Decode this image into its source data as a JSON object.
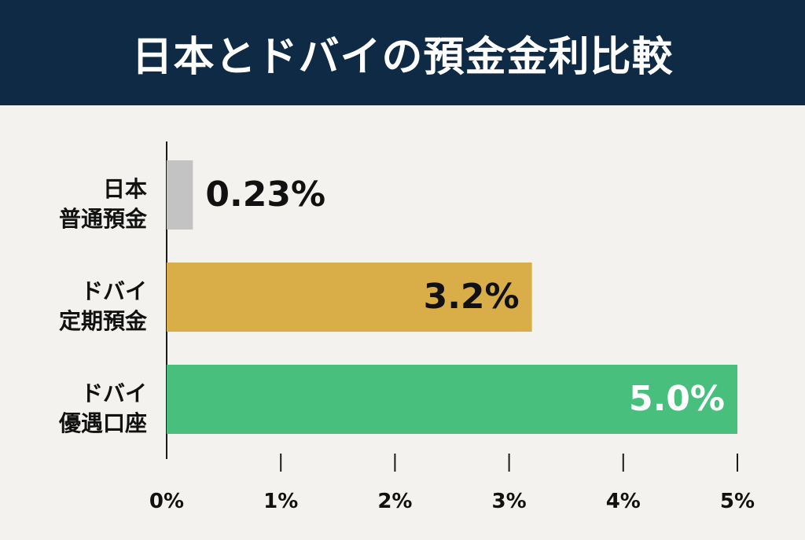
{
  "header": {
    "title": "日本とドバイの預金金利比較"
  },
  "colors": {
    "header_bg": "#0e2a45",
    "background": "#f3f2ee",
    "axis": "#1a1a1a"
  },
  "chart_data": {
    "type": "bar",
    "orientation": "horizontal",
    "title": "日本とドバイの預金金利比較",
    "xlabel": "",
    "ylabel": "",
    "xlim": [
      0,
      5
    ],
    "x_ticks": [
      "0%",
      "1%",
      "2%",
      "3%",
      "4%",
      "5%"
    ],
    "grid": false,
    "categories": [
      [
        "日本",
        "普通預金"
      ],
      [
        "ドバイ",
        "定期預金"
      ],
      [
        "ドバイ",
        "優遇口座"
      ]
    ],
    "values": [
      0.23,
      3.2,
      5.0
    ],
    "value_labels": [
      "0.23%",
      "3.2%",
      "5.0%"
    ],
    "bar_colors": [
      "#c3c3c3",
      "#d9ae48",
      "#48bf7c"
    ],
    "label_colors": [
      "#111111",
      "#111111",
      "#ffffff"
    ],
    "label_positions": [
      "outside",
      "inside",
      "inside"
    ]
  }
}
